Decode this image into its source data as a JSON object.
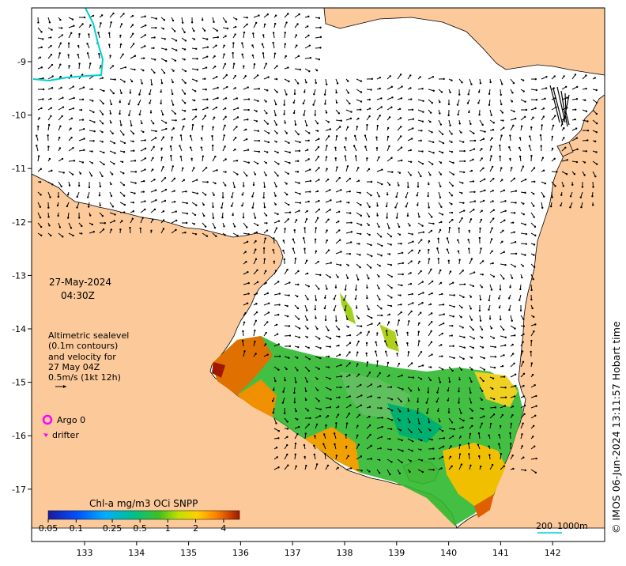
{
  "timestamp": {
    "date": "27-May-2024",
    "time": "04:30Z"
  },
  "altimetry": {
    "line1": "Altimetric sealevel",
    "line2": "(0.1m contours)",
    "line3": "and velocity for",
    "line4": "27 May 04Z",
    "line5": "0.5m/s (1kt 12h)"
  },
  "legend": {
    "argo": "Argo 0",
    "drifter": "drifter"
  },
  "colorbar": {
    "title": "Chl-a mg/m3 OCi SNPP",
    "ticks": [
      "0.05",
      "0.1",
      "0.25",
      "0.5",
      "1",
      "2",
      "4"
    ]
  },
  "scale_bar": {
    "label_km": "200",
    "label_depth": "1000m"
  },
  "credit": "© IMOS 06-Jun-2024 13:11:57 Hobart time",
  "axes": {
    "lon_ticks": [
      "133",
      "134",
      "135",
      "136",
      "137",
      "138",
      "139",
      "140",
      "141",
      "142"
    ],
    "lat_ticks": [
      "9",
      "10",
      "11",
      "12",
      "13",
      "14",
      "15",
      "16",
      "17"
    ],
    "lat_prefix": "-"
  },
  "colors": {
    "land": "#fcc99a",
    "ocean": "#ffffff",
    "arrow": "#000000",
    "argo": "#ff00ff",
    "drifter": "#ff00ff",
    "contour": "#00d0d0"
  }
}
